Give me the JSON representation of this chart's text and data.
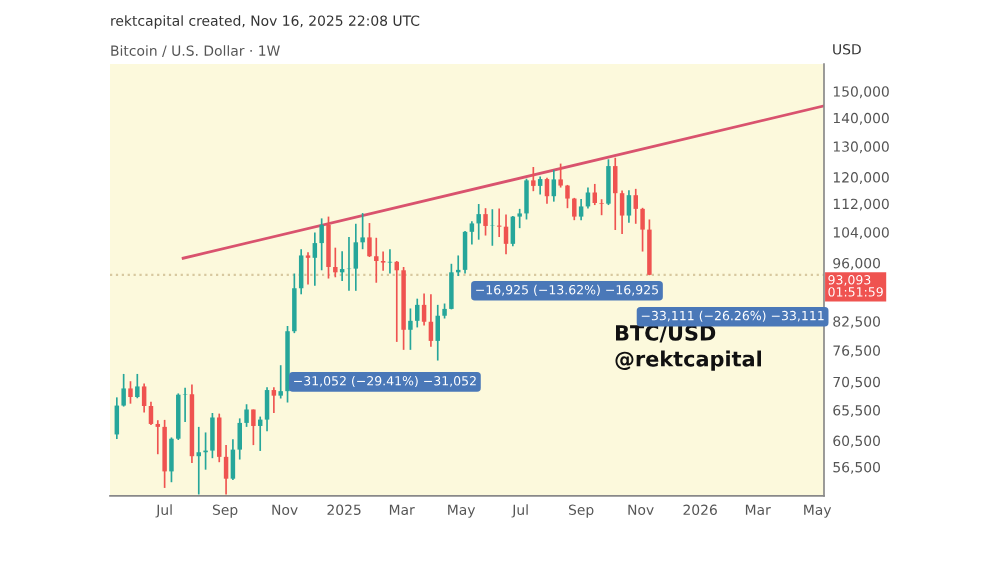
{
  "chart_data": {
    "type": "candlestick",
    "title": "Bitcoin / U.S. Dollar · 1W",
    "x": [
      "2024-05-13",
      "2024-05-20",
      "2024-05-27",
      "2024-06-03",
      "2024-06-10",
      "2024-06-17",
      "2024-06-24",
      "2024-07-01",
      "2024-07-08",
      "2024-07-15",
      "2024-07-22",
      "2024-07-29",
      "2024-08-05",
      "2024-08-12",
      "2024-08-19",
      "2024-08-26",
      "2024-09-02",
      "2024-09-09",
      "2024-09-16",
      "2024-09-23",
      "2024-09-30",
      "2024-10-07",
      "2024-10-14",
      "2024-10-21",
      "2024-10-28",
      "2024-11-04",
      "2024-11-11",
      "2024-11-18",
      "2024-11-25",
      "2024-12-02",
      "2024-12-09",
      "2024-12-16",
      "2024-12-23",
      "2024-12-30",
      "2025-01-06",
      "2025-01-13",
      "2025-01-20",
      "2025-01-27",
      "2025-02-03",
      "2025-02-10",
      "2025-02-17",
      "2025-02-24",
      "2025-03-03",
      "2025-03-10",
      "2025-03-17",
      "2025-03-24",
      "2025-03-31",
      "2025-04-07",
      "2025-04-14",
      "2025-04-21",
      "2025-04-28",
      "2025-05-05",
      "2025-05-12",
      "2025-05-19",
      "2025-05-26",
      "2025-06-02",
      "2025-06-09",
      "2025-06-16",
      "2025-06-23",
      "2025-06-30",
      "2025-07-07",
      "2025-07-14",
      "2025-07-21",
      "2025-07-28",
      "2025-08-04",
      "2025-08-11",
      "2025-08-18",
      "2025-08-25",
      "2025-09-01",
      "2025-09-08",
      "2025-09-15",
      "2025-09-22",
      "2025-09-29",
      "2025-10-06",
      "2025-10-13",
      "2025-10-20",
      "2025-10-27",
      "2025-11-03",
      "2025-11-10"
    ],
    "ohlc": [
      [
        61480,
        67700,
        60750,
        66270
      ],
      [
        66270,
        71950,
        66100,
        69290
      ],
      [
        69290,
        70600,
        66600,
        67760
      ],
      [
        67760,
        71950,
        67550,
        69650
      ],
      [
        69650,
        70200,
        65100,
        66200
      ],
      [
        66200,
        66950,
        63000,
        63180
      ],
      [
        63180,
        63800,
        58400,
        62700
      ],
      [
        62700,
        63850,
        53500,
        55850
      ],
      [
        55850,
        61000,
        54300,
        60800
      ],
      [
        60800,
        68400,
        60600,
        68170
      ],
      [
        68170,
        69400,
        63500,
        68250
      ],
      [
        68250,
        70000,
        57100,
        58100
      ],
      [
        58100,
        62700,
        52600,
        58700
      ],
      [
        58700,
        61800,
        56100,
        58950
      ],
      [
        58950,
        65000,
        57800,
        64250
      ],
      [
        64250,
        64900,
        57200,
        58000
      ],
      [
        58000,
        59800,
        52600,
        54800
      ],
      [
        54800,
        60700,
        54600,
        59100
      ],
      [
        59100,
        64100,
        57600,
        63350
      ],
      [
        63350,
        66500,
        62700,
        65600
      ],
      [
        65600,
        65600,
        59800,
        62850
      ],
      [
        62850,
        64400,
        58900,
        63900
      ],
      [
        63900,
        69500,
        62000,
        69000
      ],
      [
        69000,
        69500,
        65000,
        68000
      ],
      [
        68000,
        73600,
        67500,
        68800
      ],
      [
        68800,
        81500,
        66800,
        80400
      ],
      [
        80400,
        93400,
        80000,
        89900
      ],
      [
        89900,
        99500,
        88500,
        97900
      ],
      [
        97900,
        98700,
        90800,
        97300
      ],
      [
        97300,
        103900,
        90500,
        101100
      ],
      [
        101100,
        107800,
        94200,
        106000
      ],
      [
        106000,
        108300,
        92200,
        95000
      ],
      [
        95000,
        99900,
        92500,
        93700
      ],
      [
        93700,
        99000,
        91600,
        94500
      ],
      [
        94500,
        102700,
        89300,
        94600
      ],
      [
        94600,
        106300,
        89300,
        101300
      ],
      [
        101300,
        109300,
        99500,
        102600
      ],
      [
        102600,
        106500,
        97500,
        97700
      ],
      [
        97700,
        102500,
        91200,
        96500
      ],
      [
        96500,
        98900,
        94100,
        96100
      ],
      [
        96100,
        99500,
        93400,
        96300
      ],
      [
        96300,
        96500,
        78200,
        94200
      ],
      [
        94200,
        95000,
        76600,
        80700
      ],
      [
        80700,
        85300,
        76600,
        82600
      ],
      [
        82600,
        87500,
        81200,
        86100
      ],
      [
        86100,
        88700,
        81600,
        82400
      ],
      [
        82400,
        88500,
        77200,
        78400
      ],
      [
        78400,
        86100,
        74500,
        83700
      ],
      [
        83700,
        86400,
        83100,
        85200
      ],
      [
        85200,
        95800,
        85100,
        93700
      ],
      [
        93700,
        97900,
        92800,
        94300
      ],
      [
        94300,
        104300,
        93400,
        104100
      ],
      [
        104100,
        107000,
        100700,
        106400
      ],
      [
        106400,
        111900,
        102000,
        109000
      ],
      [
        109000,
        110700,
        103100,
        105700
      ],
      [
        105700,
        110400,
        100400,
        105800
      ],
      [
        105800,
        110600,
        102700,
        105500
      ],
      [
        105500,
        108900,
        98200,
        100900
      ],
      [
        100900,
        108500,
        100300,
        108300
      ],
      [
        108300,
        110500,
        105100,
        109200
      ],
      [
        109200,
        119500,
        107500,
        119000
      ],
      [
        119000,
        123200,
        115700,
        117300
      ],
      [
        117300,
        120200,
        114700,
        119400
      ],
      [
        119400,
        119800,
        112000,
        114200
      ],
      [
        114200,
        122300,
        112600,
        119300
      ],
      [
        119300,
        124300,
        116800,
        117400
      ],
      [
        117400,
        117600,
        110700,
        113500
      ],
      [
        113500,
        113700,
        107300,
        108300
      ],
      [
        108300,
        113400,
        107300,
        111200
      ],
      [
        111200,
        116800,
        110600,
        115300
      ],
      [
        115300,
        117900,
        111600,
        112200
      ],
      [
        112200,
        113300,
        108700,
        112000
      ],
      [
        112000,
        125700,
        111600,
        123500
      ],
      [
        123500,
        126200,
        104600,
        115100
      ],
      [
        115100,
        115900,
        103500,
        108600
      ],
      [
        108600,
        116000,
        106600,
        114500
      ],
      [
        114500,
        116400,
        106300,
        110500
      ],
      [
        110500,
        110800,
        98900,
        104700
      ],
      [
        104700,
        107500,
        93000,
        93093
      ]
    ],
    "colors": [
      "#26a69a",
      "#26a69a",
      "#ef5350",
      "#26a69a",
      "#ef5350",
      "#ef5350",
      "#ef5350",
      "#ef5350",
      "#26a69a",
      "#26a69a",
      "#26a69a",
      "#ef5350",
      "#26a69a",
      "#26a69a",
      "#26a69a",
      "#ef5350",
      "#ef5350",
      "#26a69a",
      "#26a69a",
      "#26a69a",
      "#ef5350",
      "#26a69a",
      "#26a69a",
      "#ef5350",
      "#26a69a",
      "#26a69a",
      "#26a69a",
      "#26a69a",
      "#ef5350",
      "#26a69a",
      "#26a69a",
      "#ef5350",
      "#ef5350",
      "#26a69a",
      "#26a69a",
      "#26a69a",
      "#26a69a",
      "#ef5350",
      "#ef5350",
      "#ef5350",
      "#26a69a",
      "#ef5350",
      "#ef5350",
      "#26a69a",
      "#26a69a",
      "#ef5350",
      "#ef5350",
      "#26a69a",
      "#26a69a",
      "#26a69a",
      "#26a69a",
      "#26a69a",
      "#26a69a",
      "#26a69a",
      "#ef5350",
      "#26a69a",
      "#ef5350",
      "#ef5350",
      "#26a69a",
      "#26a69a",
      "#26a69a",
      "#ef5350",
      "#26a69a",
      "#ef5350",
      "#26a69a",
      "#ef5350",
      "#ef5350",
      "#ef5350",
      "#26a69a",
      "#26a69a",
      "#ef5350",
      "#ef5350",
      "#26a69a",
      "#ef5350",
      "#ef5350",
      "#26a69a",
      "#ef5350",
      "#ef5350",
      "#ef5350"
    ],
    "series": [
      {
        "type": "line",
        "color": "#d9536e",
        "x": [
          "2024-07-20",
          "2026-05-08"
        ],
        "values": [
          97200,
          144400
        ]
      }
    ],
    "ref_lines": [
      {
        "axis": "y",
        "value": 93093,
        "color": "#d8c9a0",
        "line_style": "dotted"
      }
    ],
    "log": true,
    "xlim": [
      "2024-05-06",
      "2026-05-08"
    ],
    "xticks": [
      {
        "value": "2024-07-01",
        "label": "Jul"
      },
      {
        "value": "2024-09-01",
        "label": "Sep"
      },
      {
        "value": "2024-11-01",
        "label": "Nov"
      },
      {
        "value": "2025-01-01",
        "label": "2025"
      },
      {
        "value": "2025-03-01",
        "label": "Mar"
      },
      {
        "value": "2025-05-01",
        "label": "May"
      },
      {
        "value": "2025-07-01",
        "label": "Jul"
      },
      {
        "value": "2025-09-01",
        "label": "Sep"
      },
      {
        "value": "2025-11-01",
        "label": "Nov"
      },
      {
        "value": "2026-01-01",
        "label": "2026"
      },
      {
        "value": "2026-03-01",
        "label": "Mar"
      },
      {
        "value": "2026-05-01",
        "label": "May"
      }
    ],
    "ylim": [
      52400,
      161000
    ],
    "yticks": [
      {
        "value": 56500,
        "label": "56,500"
      },
      {
        "value": 60500,
        "label": "60,500"
      },
      {
        "value": 65500,
        "label": "65,500"
      },
      {
        "value": 70500,
        "label": "70,500"
      },
      {
        "value": 76500,
        "label": "76,500"
      },
      {
        "value": 82500,
        "label": "82,500"
      },
      {
        "value": 96000,
        "label": "96,000"
      },
      {
        "value": 104000,
        "label": "104,000"
      },
      {
        "value": 112000,
        "label": "112,000"
      },
      {
        "value": 120000,
        "label": "120,000"
      },
      {
        "value": 130000,
        "label": "130,000"
      },
      {
        "value": 140000,
        "label": "140,000"
      },
      {
        "value": 150000,
        "label": "150,000"
      }
    ],
    "annotations": [
      "rektcapital created, Nov 16, 2025 22:08 UTC",
      "USD",
      "93,093\n01:51:59",
      "BTC/USD",
      "@rektcapital",
      "−31,052 (−29.41%) −31,052",
      "−16,925 (−13.62%) −16,925",
      "−33,111 (−26.26%) −33,111"
    ]
  }
}
